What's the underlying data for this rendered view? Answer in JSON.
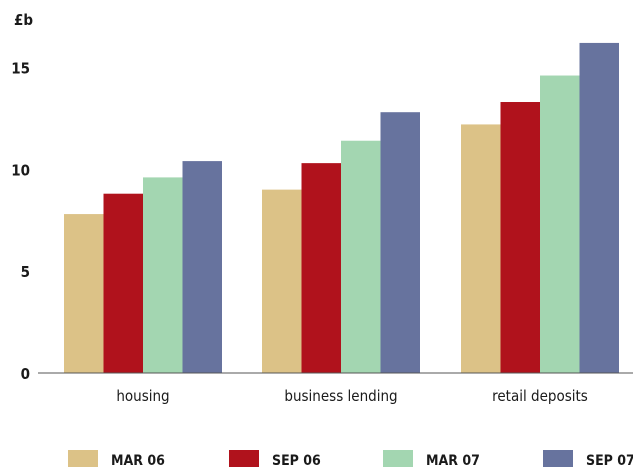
{
  "chart_data": {
    "type": "bar",
    "ylabel": "£b",
    "ylim": [
      0,
      16
    ],
    "yticks": [
      0,
      5,
      10,
      15
    ],
    "grid": false,
    "legend_position": "bottom",
    "categories": [
      "housing",
      "business lending",
      "retail deposits"
    ],
    "series": [
      {
        "name": "MAR 06",
        "color": "#dcc287",
        "values": [
          7.8,
          9.0,
          12.2
        ]
      },
      {
        "name": "SEP 06",
        "color": "#b0121c",
        "values": [
          8.8,
          10.3,
          13.3
        ]
      },
      {
        "name": "MAR 07",
        "color": "#a3d6b1",
        "values": [
          9.6,
          11.4,
          14.6
        ]
      },
      {
        "name": "SEP 07",
        "color": "#67739e",
        "values": [
          10.4,
          12.8,
          16.2
        ]
      }
    ]
  }
}
